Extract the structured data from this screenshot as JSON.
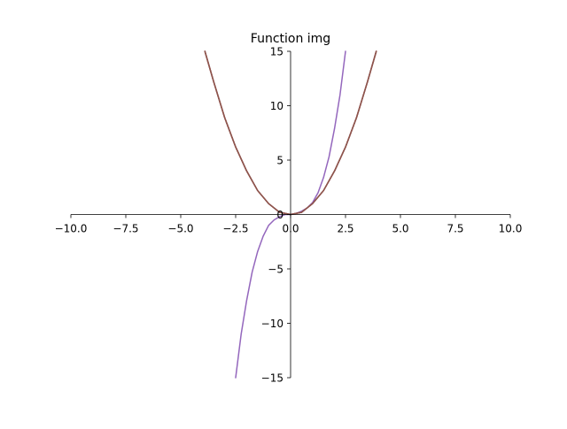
{
  "chart_data": {
    "type": "line",
    "title": "Function img",
    "xlabel": "",
    "ylabel": "",
    "xlim": [
      -10,
      10
    ],
    "ylim": [
      -15,
      15
    ],
    "x_ticks": [
      -10,
      -7.5,
      -5,
      -2.5,
      0,
      2.5,
      5,
      7.5,
      10
    ],
    "x_tick_labels": [
      "−10.0",
      "−7.5",
      "−5.0",
      "−2.5",
      "0.0",
      "2.5",
      "5.0",
      "7.5",
      "10.0"
    ],
    "y_ticks": [
      -15,
      -10,
      -5,
      0,
      5,
      10,
      15
    ],
    "y_tick_labels": [
      "−15",
      "−10",
      "−5",
      "0",
      "5",
      "10",
      "15"
    ],
    "grid": false,
    "legend": false,
    "spines": "centered",
    "series": [
      {
        "color": "#9467bd",
        "x": [
          -2.5,
          -2.25,
          -2.0,
          -1.75,
          -1.5,
          -1.25,
          -1.0,
          -0.75,
          -0.5,
          -0.25,
          0.0,
          0.25,
          0.5,
          0.75,
          1.0,
          1.25,
          1.5,
          1.75,
          2.0,
          2.25,
          2.5
        ],
        "y": [
          -15.0,
          -11.0,
          -7.9,
          -5.3,
          -3.4,
          -2.0,
          -1.0,
          -0.5,
          -0.2,
          0.0,
          0.0,
          0.1,
          0.3,
          0.6,
          1.1,
          2.0,
          3.4,
          5.3,
          7.9,
          11.0,
          15.0
        ]
      },
      {
        "color": "#1f77b4",
        "x": [
          -3.9,
          -3.5,
          -3.0,
          -2.5,
          -2.0,
          -1.5,
          -1.0,
          -0.5,
          0.0,
          0.5,
          1.0,
          1.5,
          2.0,
          2.5,
          3.0,
          3.5,
          3.9
        ],
        "y": [
          15.0,
          12.2,
          8.9,
          6.2,
          4.0,
          2.2,
          1.0,
          0.2,
          0.0,
          0.2,
          1.0,
          2.2,
          4.0,
          6.2,
          8.9,
          12.2,
          15.0
        ]
      },
      {
        "color": "#d62728",
        "x": [
          -3.9,
          -3.5,
          -3.0,
          -2.5,
          -2.0,
          -1.5,
          -1.0,
          -0.5,
          0.0,
          0.5,
          1.0,
          1.5,
          2.0,
          2.5,
          3.0,
          3.5,
          3.9
        ],
        "y": [
          15.0,
          12.2,
          8.9,
          6.2,
          4.0,
          2.2,
          1.0,
          0.2,
          0.0,
          0.2,
          1.0,
          2.2,
          4.0,
          6.2,
          8.9,
          12.2,
          15.0
        ]
      },
      {
        "color": "#8c564b",
        "x": [
          -3.9,
          -3.5,
          -3.0,
          -2.5,
          -2.0,
          -1.5,
          -1.0,
          -0.5,
          0.0,
          0.5,
          1.0,
          1.5,
          2.0,
          2.5,
          3.0,
          3.5,
          3.9
        ],
        "y": [
          15.0,
          12.2,
          8.9,
          6.2,
          4.0,
          2.2,
          1.0,
          0.2,
          0.0,
          0.2,
          1.0,
          2.2,
          4.0,
          6.2,
          8.9,
          12.2,
          15.0
        ]
      }
    ]
  }
}
